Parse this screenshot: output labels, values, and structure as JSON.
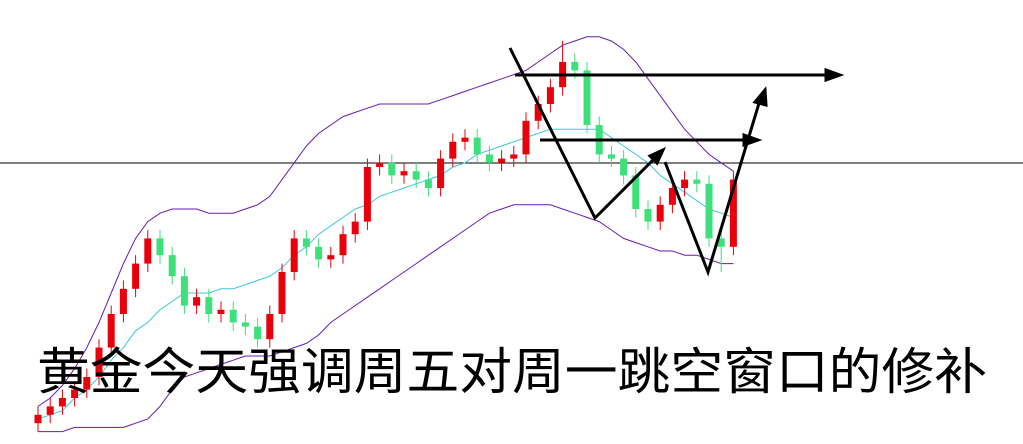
{
  "chart_data": {
    "type": "candlestick",
    "title": "黄金今天强调周五对周一跳空窗口的修补",
    "open": [
      4,
      6,
      8,
      10,
      12,
      15,
      22,
      30,
      36,
      42,
      48,
      44,
      39,
      32,
      34,
      30,
      31,
      28,
      27,
      24,
      30,
      40,
      48,
      46,
      43,
      44,
      49,
      52,
      65,
      66,
      63,
      64,
      62,
      60,
      67,
      71,
      72,
      68,
      66,
      67,
      68,
      76,
      80,
      84,
      90,
      88,
      75,
      68,
      67,
      63,
      55,
      52,
      56,
      60,
      62,
      61,
      48,
      46
    ],
    "high": [
      8,
      10,
      12,
      14,
      17,
      24,
      32,
      38,
      44,
      50,
      50,
      46,
      41,
      36,
      36,
      33,
      33,
      30,
      29,
      32,
      42,
      50,
      50,
      48,
      46,
      51,
      54,
      67,
      68,
      68,
      66,
      66,
      64,
      69,
      73,
      74,
      74,
      70,
      69,
      70,
      78,
      82,
      86,
      95,
      92,
      90,
      77,
      70,
      69,
      65,
      57,
      58,
      62,
      64,
      64,
      63,
      50,
      64
    ],
    "low": [
      2,
      4,
      6,
      8,
      10,
      13,
      20,
      28,
      34,
      40,
      42,
      37,
      30,
      30,
      28,
      28,
      26,
      25,
      22,
      22,
      28,
      38,
      44,
      41,
      41,
      42,
      47,
      50,
      63,
      61,
      61,
      60,
      58,
      58,
      65,
      69,
      66,
      64,
      64,
      65,
      66,
      74,
      78,
      82,
      86,
      73,
      66,
      65,
      61,
      53,
      50,
      50,
      54,
      58,
      59,
      46,
      40,
      44
    ],
    "close": [
      6,
      8,
      10,
      12,
      15,
      22,
      30,
      36,
      42,
      48,
      44,
      39,
      32,
      34,
      30,
      31,
      28,
      27,
      24,
      30,
      40,
      48,
      46,
      43,
      44,
      49,
      52,
      65,
      66,
      63,
      64,
      62,
      60,
      67,
      71,
      72,
      68,
      66,
      67,
      68,
      76,
      80,
      84,
      90,
      88,
      75,
      68,
      67,
      63,
      55,
      52,
      56,
      60,
      62,
      61,
      48,
      46,
      62
    ],
    "up_color": "#e8000b",
    "down_color": "#3de07a",
    "series": [
      {
        "color": "#6a1bb0",
        "values": [
          8,
          10,
          13,
          17,
          22,
          28,
          35,
          42,
          48,
          52,
          54,
          55,
          55,
          55,
          54,
          54,
          54,
          55,
          56,
          58,
          62,
          66,
          70,
          73,
          75,
          77,
          78,
          79,
          80,
          80,
          80,
          80,
          80,
          81,
          82,
          83,
          84,
          85,
          86,
          87,
          88,
          90,
          92,
          94,
          95,
          96,
          96,
          95,
          93,
          90,
          86,
          82,
          78,
          74,
          71,
          68,
          66,
          64
        ]
      },
      {
        "color": "#38c8e0",
        "values": [
          5,
          6,
          7,
          10,
          12,
          15,
          19,
          22,
          26,
          28,
          31,
          33,
          35,
          35,
          35,
          36,
          36,
          37,
          38,
          39,
          41,
          44,
          46,
          49,
          51,
          53,
          55,
          56,
          58,
          59,
          60,
          61,
          62,
          63,
          65,
          66,
          68,
          69,
          70,
          71,
          72,
          73,
          74,
          74,
          74,
          74,
          74,
          72,
          70,
          68,
          66,
          63,
          61,
          59,
          57,
          55,
          54,
          53
        ]
      },
      {
        "color": "#6a1bb0",
        "values": [
          2,
          2,
          2,
          3,
          3,
          3,
          3,
          3,
          4,
          5,
          8,
          12,
          15,
          16,
          17,
          18,
          19,
          20,
          20,
          20,
          21,
          22,
          23,
          25,
          28,
          30,
          32,
          34,
          36,
          38,
          40,
          42,
          44,
          46,
          48,
          50,
          52,
          54,
          55,
          56,
          56,
          56,
          56,
          55,
          54,
          53,
          52,
          50,
          48,
          47,
          46,
          45,
          45,
          44,
          44,
          43,
          42,
          42
        ]
      }
    ],
    "ylim": [
      0,
      100
    ]
  }
}
